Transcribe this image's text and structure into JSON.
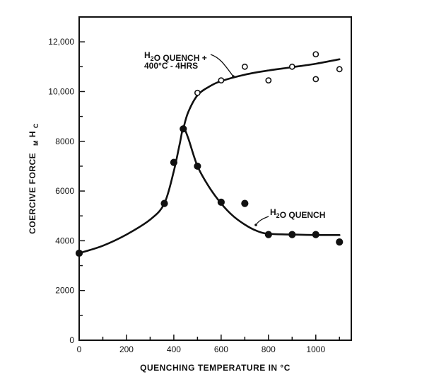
{
  "chart_data": {
    "type": "line",
    "title": "",
    "xlabel": "QUENCHING TEMPERATURE IN °C",
    "ylabel": {
      "main": "COERCIVE FORCE",
      "sym_sub": "M",
      "sym": "H",
      "sym_sub2": "C"
    },
    "xlim": [
      0,
      1150
    ],
    "ylim": [
      0,
      13000
    ],
    "x_ticks": [
      0,
      200,
      400,
      600,
      800,
      1000
    ],
    "x_tick_labels": [
      "0",
      "200",
      "400",
      "600",
      "800",
      "1000"
    ],
    "y_ticks": [
      0,
      2000,
      4000,
      6000,
      8000,
      10000,
      12000
    ],
    "y_tick_labels": [
      "0",
      "2000",
      "4000",
      "6000",
      "8000",
      "10,000",
      "12,000"
    ],
    "grid": false,
    "series": [
      {
        "name": "H2O QUENCH",
        "label_lines": [
          {
            "parts": [
              {
                "t": "H"
              },
              {
                "t": "2",
                "sub": true
              },
              {
                "t": "O QUENCH"
              }
            ]
          }
        ],
        "marker": "filled-circle",
        "points": [
          {
            "x": 0,
            "y": 3500
          },
          {
            "x": 360,
            "y": 5500
          },
          {
            "x": 400,
            "y": 7150
          },
          {
            "x": 440,
            "y": 8500
          },
          {
            "x": 500,
            "y": 7000
          },
          {
            "x": 600,
            "y": 5550
          },
          {
            "x": 700,
            "y": 5500
          },
          {
            "x": 800,
            "y": 4250
          },
          {
            "x": 900,
            "y": 4250
          },
          {
            "x": 1000,
            "y": 4250
          },
          {
            "x": 1100,
            "y": 3950
          }
        ],
        "curve": [
          {
            "x": 0,
            "y": 3500
          },
          {
            "x": 100,
            "y": 3800
          },
          {
            "x": 200,
            "y": 4250
          },
          {
            "x": 300,
            "y": 4850
          },
          {
            "x": 360,
            "y": 5500
          },
          {
            "x": 400,
            "y": 6800
          },
          {
            "x": 425,
            "y": 7900
          },
          {
            "x": 440,
            "y": 8500
          },
          {
            "x": 460,
            "y": 8150
          },
          {
            "x": 500,
            "y": 7000
          },
          {
            "x": 550,
            "y": 6150
          },
          {
            "x": 600,
            "y": 5500
          },
          {
            "x": 650,
            "y": 5000
          },
          {
            "x": 700,
            "y": 4650
          },
          {
            "x": 750,
            "y": 4400
          },
          {
            "x": 800,
            "y": 4280
          },
          {
            "x": 900,
            "y": 4250
          },
          {
            "x": 1000,
            "y": 4230
          },
          {
            "x": 1100,
            "y": 4230
          }
        ]
      },
      {
        "name": "H2O QUENCH + 400°C-4HRS",
        "label_lines": [
          {
            "parts": [
              {
                "t": "H"
              },
              {
                "t": "2",
                "sub": true
              },
              {
                "t": "O QUENCH +"
              }
            ]
          },
          {
            "parts": [
              {
                "t": "400°C - 4HRS"
              }
            ]
          }
        ],
        "marker": "open-circle",
        "points": [
          {
            "x": 500,
            "y": 9950
          },
          {
            "x": 600,
            "y": 10450
          },
          {
            "x": 700,
            "y": 11000
          },
          {
            "x": 800,
            "y": 10450
          },
          {
            "x": 900,
            "y": 11000
          },
          {
            "x": 1000,
            "y": 11500
          },
          {
            "x": 1000,
            "y": 10500
          },
          {
            "x": 1100,
            "y": 10900
          }
        ],
        "curve": [
          {
            "x": 440,
            "y": 8500
          },
          {
            "x": 460,
            "y": 9150
          },
          {
            "x": 500,
            "y": 9850
          },
          {
            "x": 550,
            "y": 10200
          },
          {
            "x": 600,
            "y": 10420
          },
          {
            "x": 700,
            "y": 10680
          },
          {
            "x": 800,
            "y": 10850
          },
          {
            "x": 900,
            "y": 10980
          },
          {
            "x": 1000,
            "y": 11120
          },
          {
            "x": 1100,
            "y": 11300
          }
        ]
      }
    ]
  }
}
